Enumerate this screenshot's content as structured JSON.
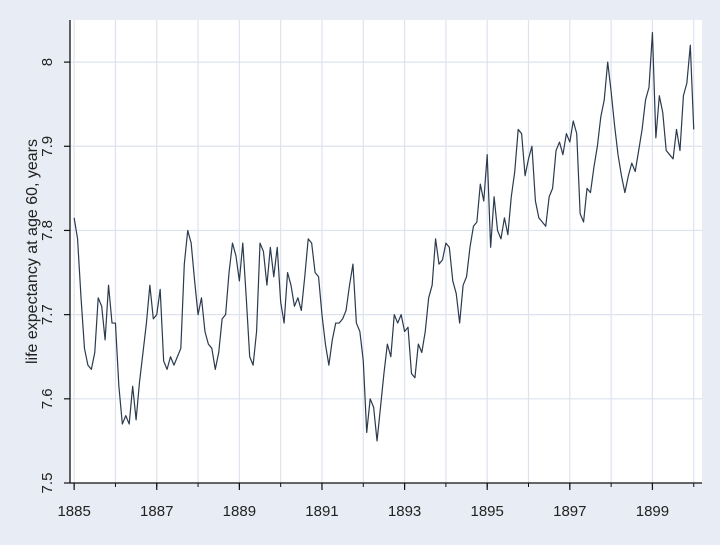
{
  "chart_data": {
    "type": "line",
    "title": "",
    "xlabel": "",
    "ylabel": "life expectancy at age 60, years",
    "xlim": [
      1884.9,
      1900.2
    ],
    "ylim": [
      7.5,
      8.05
    ],
    "x_ticks": [
      1885,
      1887,
      1889,
      1891,
      1893,
      1895,
      1897,
      1899
    ],
    "x_tick_labels": [
      "1885",
      "1887",
      "1889",
      "1891",
      "1893",
      "1895",
      "1897",
      "1899"
    ],
    "y_ticks": [
      7.5,
      7.6,
      7.7,
      7.8,
      7.9,
      8.0
    ],
    "y_tick_labels": [
      "7.5",
      "7.6",
      "7.7",
      "7.8",
      "7.9",
      "8"
    ],
    "grid": true,
    "legend": "none",
    "colors": {
      "line": "#2b3a4e",
      "plot_bg": "#ffffff",
      "page_bg": "#e8ecf4",
      "grid": "#dde3ee"
    },
    "series": [
      {
        "x": [
          1885.0,
          1885.083,
          1885.167,
          1885.25,
          1885.333,
          1885.417,
          1885.5,
          1885.583,
          1885.667,
          1885.75,
          1885.833,
          1885.917,
          1886.0,
          1886.083,
          1886.167,
          1886.25,
          1886.333,
          1886.417,
          1886.5,
          1886.583,
          1886.667,
          1886.75,
          1886.833,
          1886.917,
          1887.0,
          1887.083,
          1887.167,
          1887.25,
          1887.333,
          1887.417,
          1887.5,
          1887.583,
          1887.667,
          1887.75,
          1887.833,
          1887.917,
          1888.0,
          1888.083,
          1888.167,
          1888.25,
          1888.333,
          1888.417,
          1888.5,
          1888.583,
          1888.667,
          1888.75,
          1888.833,
          1888.917,
          1889.0,
          1889.083,
          1889.167,
          1889.25,
          1889.333,
          1889.417,
          1889.5,
          1889.583,
          1889.667,
          1889.75,
          1889.833,
          1889.917,
          1890.0,
          1890.083,
          1890.167,
          1890.25,
          1890.333,
          1890.417,
          1890.5,
          1890.583,
          1890.667,
          1890.75,
          1890.833,
          1890.917,
          1891.0,
          1891.083,
          1891.167,
          1891.25,
          1891.333,
          1891.417,
          1891.5,
          1891.583,
          1891.667,
          1891.75,
          1891.833,
          1891.917,
          1892.0,
          1892.083,
          1892.167,
          1892.25,
          1892.333,
          1892.417,
          1892.5,
          1892.583,
          1892.667,
          1892.75,
          1892.833,
          1892.917,
          1893.0,
          1893.083,
          1893.167,
          1893.25,
          1893.333,
          1893.417,
          1893.5,
          1893.583,
          1893.667,
          1893.75,
          1893.833,
          1893.917,
          1894.0,
          1894.083,
          1894.167,
          1894.25,
          1894.333,
          1894.417,
          1894.5,
          1894.583,
          1894.667,
          1894.75,
          1894.833,
          1894.917,
          1895.0,
          1895.083,
          1895.167,
          1895.25,
          1895.333,
          1895.417,
          1895.5,
          1895.583,
          1895.667,
          1895.75,
          1895.833,
          1895.917,
          1896.0,
          1896.083,
          1896.167,
          1896.25,
          1896.333,
          1896.417,
          1896.5,
          1896.583,
          1896.667,
          1896.75,
          1896.833,
          1896.917,
          1897.0,
          1897.083,
          1897.167,
          1897.25,
          1897.333,
          1897.417,
          1897.5,
          1897.583,
          1897.667,
          1897.75,
          1897.833,
          1897.917,
          1898.0,
          1898.083,
          1898.167,
          1898.25,
          1898.333,
          1898.417,
          1898.5,
          1898.583,
          1898.667,
          1898.75,
          1898.833,
          1898.917,
          1899.0,
          1899.083,
          1899.167,
          1899.25,
          1899.333,
          1899.417,
          1899.5,
          1899.583,
          1899.667,
          1899.75,
          1899.833,
          1899.917,
          1900.0
        ],
        "values": [
          7.815,
          7.79,
          7.72,
          7.66,
          7.64,
          7.635,
          7.655,
          7.72,
          7.71,
          7.67,
          7.735,
          7.69,
          7.69,
          7.615,
          7.57,
          7.58,
          7.57,
          7.615,
          7.575,
          7.62,
          7.655,
          7.69,
          7.735,
          7.695,
          7.7,
          7.73,
          7.645,
          7.635,
          7.65,
          7.64,
          7.65,
          7.66,
          7.76,
          7.8,
          7.785,
          7.74,
          7.7,
          7.72,
          7.68,
          7.665,
          7.66,
          7.635,
          7.655,
          7.695,
          7.7,
          7.75,
          7.785,
          7.77,
          7.74,
          7.785,
          7.72,
          7.65,
          7.64,
          7.68,
          7.785,
          7.775,
          7.735,
          7.78,
          7.745,
          7.78,
          7.715,
          7.69,
          7.75,
          7.735,
          7.71,
          7.72,
          7.705,
          7.745,
          7.79,
          7.785,
          7.75,
          7.745,
          7.7,
          7.665,
          7.64,
          7.67,
          7.69,
          7.69,
          7.695,
          7.705,
          7.735,
          7.76,
          7.69,
          7.68,
          7.645,
          7.56,
          7.6,
          7.59,
          7.55,
          7.59,
          7.63,
          7.665,
          7.65,
          7.7,
          7.69,
          7.7,
          7.68,
          7.685,
          7.63,
          7.625,
          7.665,
          7.655,
          7.68,
          7.72,
          7.735,
          7.79,
          7.76,
          7.765,
          7.785,
          7.78,
          7.74,
          7.725,
          7.69,
          7.735,
          7.745,
          7.78,
          7.805,
          7.81,
          7.855,
          7.835,
          7.89,
          7.78,
          7.84,
          7.8,
          7.79,
          7.815,
          7.795,
          7.84,
          7.87,
          7.92,
          7.915,
          7.865,
          7.885,
          7.9,
          7.835,
          7.815,
          7.81,
          7.805,
          7.84,
          7.85,
          7.895,
          7.905,
          7.89,
          7.915,
          7.905,
          7.93,
          7.915,
          7.82,
          7.81,
          7.85,
          7.845,
          7.875,
          7.9,
          7.935,
          7.955,
          8.0,
          7.965,
          7.925,
          7.89,
          7.865,
          7.845,
          7.865,
          7.88,
          7.87,
          7.895,
          7.92,
          7.955,
          7.97,
          8.035,
          7.91,
          7.96,
          7.94,
          7.895,
          7.89,
          7.885,
          7.92,
          7.895,
          7.96,
          7.975,
          8.02,
          7.92
        ]
      }
    ]
  }
}
